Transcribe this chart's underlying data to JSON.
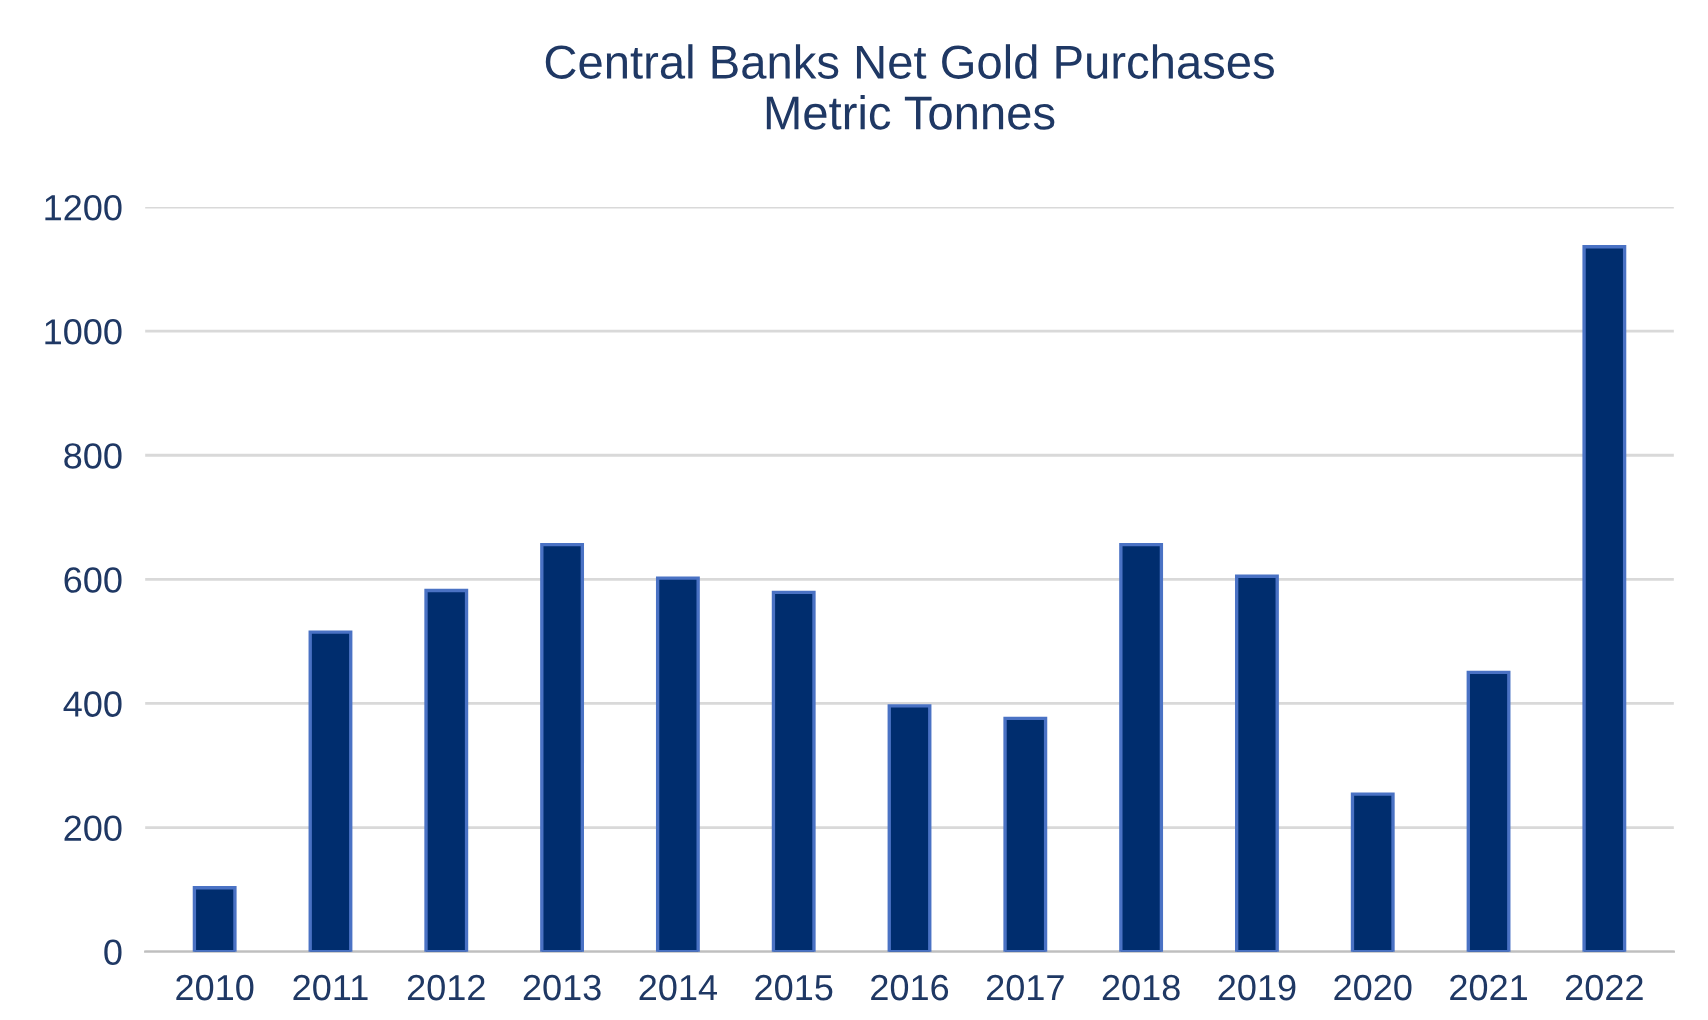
{
  "chart_data": {
    "type": "bar",
    "title": "Central Banks Net Gold Purchases\nMetric Tonnes",
    "categories": [
      "2010",
      "2011",
      "2012",
      "2013",
      "2014",
      "2015",
      "2016",
      "2017",
      "2018",
      "2019",
      "2020",
      "2021",
      "2022"
    ],
    "values": [
      103,
      515,
      582,
      656,
      602,
      579,
      396,
      376,
      656,
      605,
      254,
      450,
      1136
    ],
    "color": "#002d6e",
    "ylim": [
      0,
      1200
    ],
    "yticks": [
      0,
      200,
      400,
      600,
      800,
      1000,
      1200
    ],
    "grid": "y"
  }
}
